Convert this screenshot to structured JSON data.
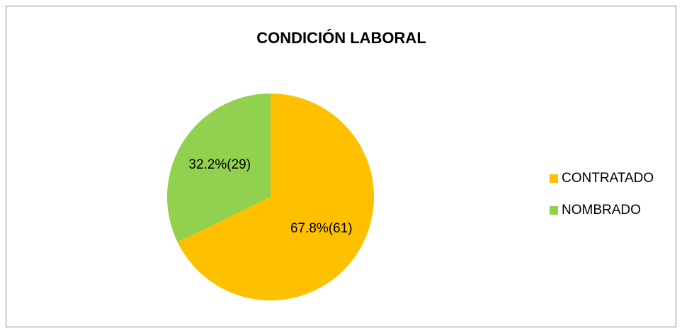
{
  "chart_data": {
    "type": "pie",
    "title": "CONDICIÓN LABORAL",
    "categories": [
      "CONTRATADO",
      "NOMBRADO"
    ],
    "values": [
      67.8,
      32.2
    ],
    "value_labels": [
      "67.8%(61)",
      "32.2%(29)"
    ],
    "colors": [
      "#ffc000",
      "#92d050"
    ],
    "legend": "right"
  }
}
